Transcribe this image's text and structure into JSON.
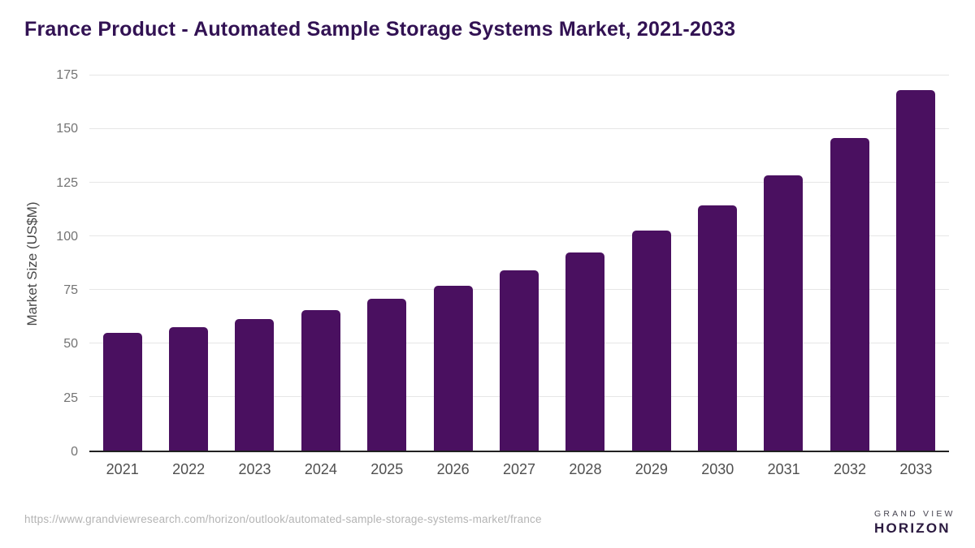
{
  "page": {
    "title": "France Product - Automated Sample Storage Systems Market, 2021-2033",
    "source_url": "https://www.grandviewresearch.com/horizon/outlook/automated-sample-storage-systems-market/france"
  },
  "chart_data": {
    "type": "bar",
    "title": "France Product - Automated Sample Storage Systems Market, 2021-2033",
    "categories": [
      "2021",
      "2022",
      "2023",
      "2024",
      "2025",
      "2026",
      "2027",
      "2028",
      "2029",
      "2030",
      "2031",
      "2032",
      "2033"
    ],
    "values": [
      54.9,
      57.7,
      61.4,
      65.6,
      70.9,
      76.8,
      84.0,
      92.3,
      102.5,
      114.3,
      128.6,
      145.9,
      168.1
    ],
    "xlabel": "",
    "ylabel": "Market Size (US$M)",
    "ylim": [
      0,
      175
    ],
    "ytick_step": 25,
    "grid": "horizontal",
    "legend": "none",
    "bar_color": "#4a1060",
    "title_color": "#321253",
    "axis_label_color": "#737373"
  },
  "logo": {
    "brand_line1": "GRAND VIEW",
    "brand_line2": "HORIZON",
    "icon": "horizon-sunset-icon",
    "dark_color": "#2f2144",
    "light_blue_color": "#57c6f3"
  }
}
